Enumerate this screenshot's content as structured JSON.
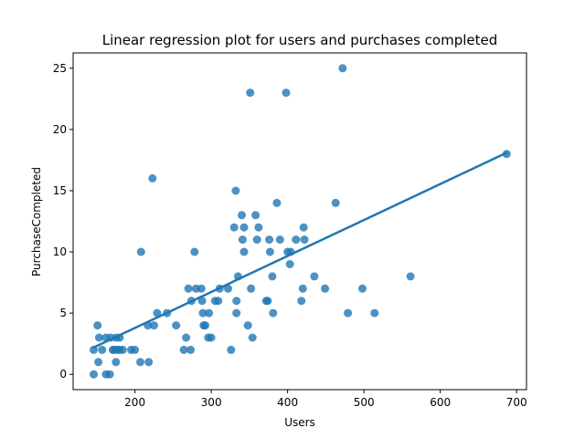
{
  "chart_data": {
    "type": "scatter",
    "title": "Linear regression plot for users and purchases completed",
    "xlabel": "Users",
    "ylabel": "PurchaseCompleted",
    "xlim": [
      119,
      713
    ],
    "ylim": [
      -1.25,
      26.25
    ],
    "xticks": [
      200,
      300,
      400,
      500,
      600,
      700
    ],
    "yticks": [
      0,
      5,
      10,
      15,
      20,
      25
    ],
    "grid": false,
    "legend": "none",
    "colors": {
      "marker": "#1f77b4",
      "regression_line": "#1f77b4"
    },
    "points": [
      [
        146,
        2
      ],
      [
        146,
        0
      ],
      [
        151,
        4
      ],
      [
        152,
        1
      ],
      [
        153,
        3
      ],
      [
        157,
        2
      ],
      [
        162,
        0
      ],
      [
        162,
        3
      ],
      [
        167,
        0
      ],
      [
        168,
        3
      ],
      [
        171,
        2
      ],
      [
        173,
        2
      ],
      [
        175,
        3
      ],
      [
        175,
        1
      ],
      [
        177,
        2
      ],
      [
        180,
        2
      ],
      [
        180,
        3
      ],
      [
        184,
        2
      ],
      [
        195,
        2
      ],
      [
        200,
        2
      ],
      [
        207,
        1
      ],
      [
        208,
        10
      ],
      [
        217,
        4
      ],
      [
        218,
        1
      ],
      [
        223,
        16
      ],
      [
        225,
        4
      ],
      [
        229,
        5
      ],
      [
        242,
        5
      ],
      [
        254,
        4
      ],
      [
        264,
        2
      ],
      [
        267,
        3
      ],
      [
        270,
        7
      ],
      [
        273,
        2
      ],
      [
        274,
        6
      ],
      [
        278,
        10
      ],
      [
        280,
        7
      ],
      [
        287,
        7
      ],
      [
        288,
        6
      ],
      [
        289,
        5
      ],
      [
        290,
        4
      ],
      [
        292,
        4
      ],
      [
        296,
        3
      ],
      [
        297,
        5
      ],
      [
        300,
        3
      ],
      [
        305,
        6
      ],
      [
        309,
        6
      ],
      [
        311,
        7
      ],
      [
        322,
        7
      ],
      [
        326,
        2
      ],
      [
        330,
        12
      ],
      [
        332,
        15
      ],
      [
        333,
        6
      ],
      [
        333,
        5
      ],
      [
        335,
        8
      ],
      [
        340,
        13
      ],
      [
        341,
        11
      ],
      [
        343,
        10
      ],
      [
        343,
        12
      ],
      [
        348,
        4
      ],
      [
        351,
        23
      ],
      [
        352,
        7
      ],
      [
        354,
        3
      ],
      [
        358,
        13
      ],
      [
        360,
        11
      ],
      [
        362,
        12
      ],
      [
        372,
        6
      ],
      [
        374,
        6
      ],
      [
        376,
        11
      ],
      [
        377,
        10
      ],
      [
        380,
        8
      ],
      [
        381,
        5
      ],
      [
        386,
        14
      ],
      [
        390,
        11
      ],
      [
        398,
        23
      ],
      [
        400,
        10
      ],
      [
        403,
        9
      ],
      [
        404,
        10
      ],
      [
        411,
        11
      ],
      [
        418,
        6
      ],
      [
        420,
        7
      ],
      [
        421,
        12
      ],
      [
        422,
        11
      ],
      [
        435,
        8
      ],
      [
        449,
        7
      ],
      [
        463,
        14
      ],
      [
        472,
        25
      ],
      [
        479,
        5
      ],
      [
        498,
        7
      ],
      [
        514,
        5
      ],
      [
        561,
        8
      ],
      [
        687,
        18
      ]
    ],
    "regression_line": {
      "x": [
        146,
        687
      ],
      "y": [
        2.2,
        18.1
      ]
    }
  }
}
